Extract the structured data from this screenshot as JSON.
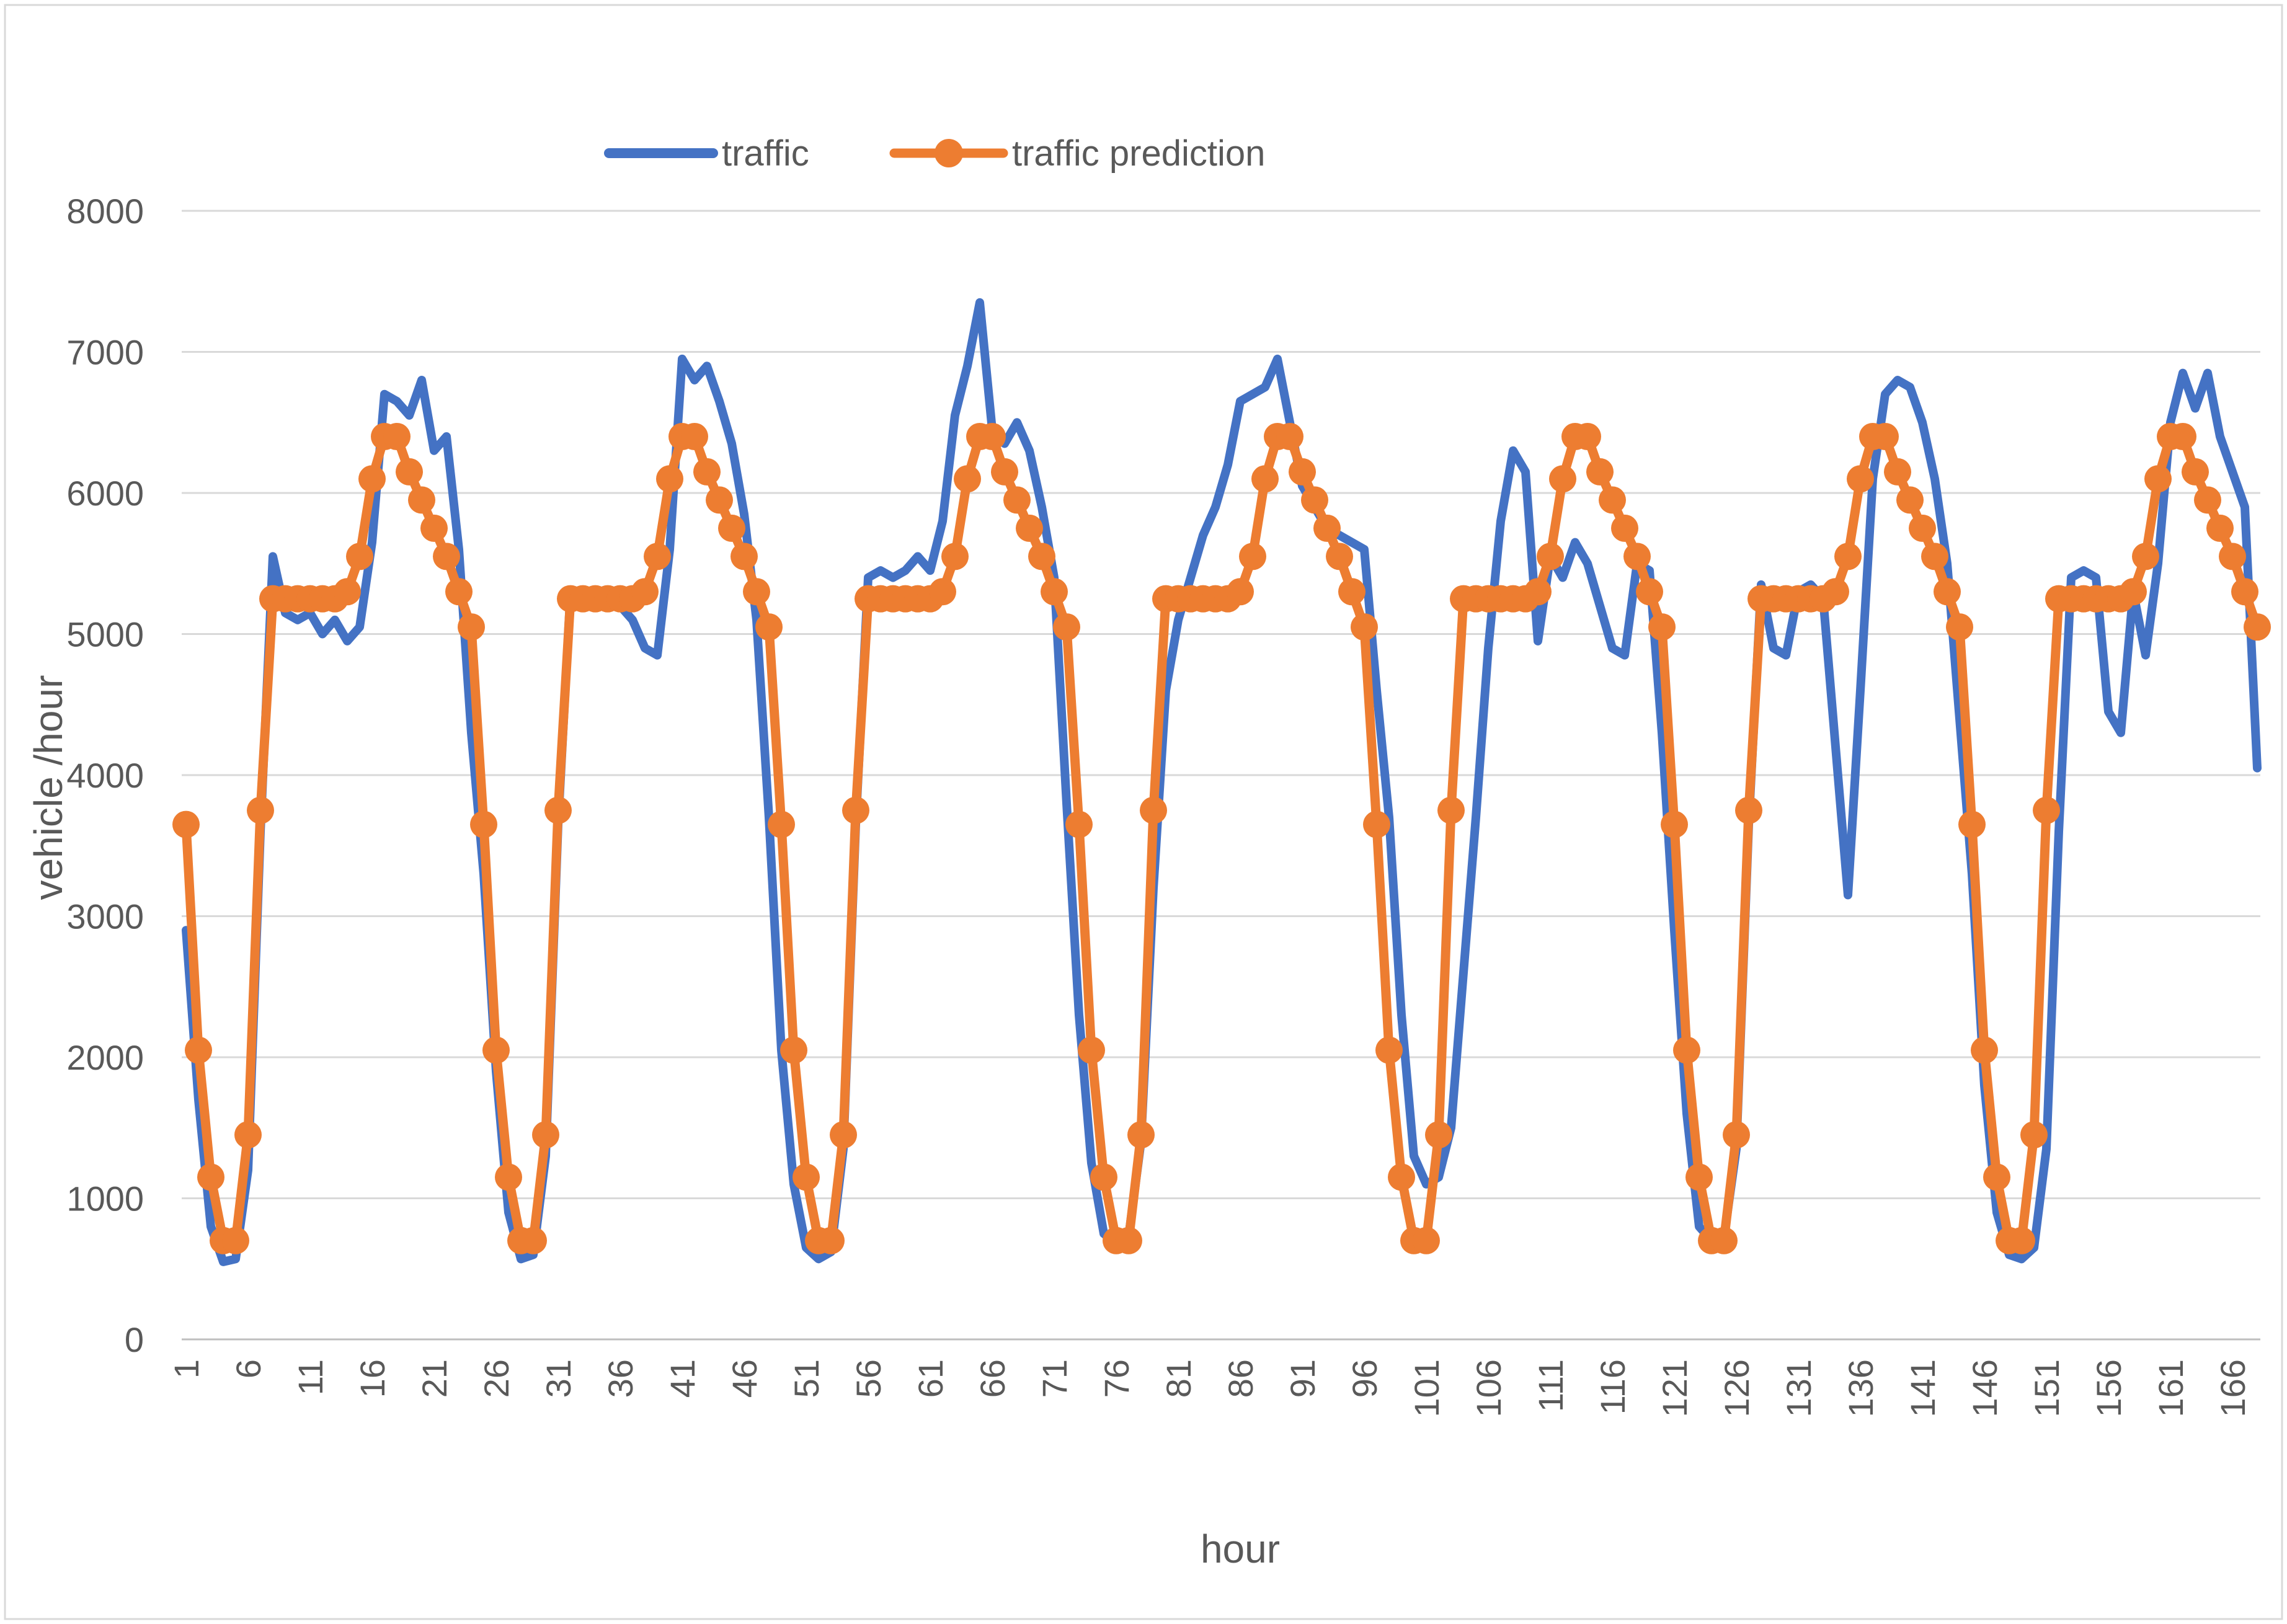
{
  "chart_data": {
    "type": "line",
    "title": "",
    "xlabel": "hour",
    "ylabel": "vehicle /hour",
    "x_range": [
      1,
      168
    ],
    "ylim": [
      0,
      8000
    ],
    "y_ticks": [
      0,
      1000,
      2000,
      3000,
      4000,
      5000,
      6000,
      7000,
      8000
    ],
    "x_ticks": [
      1,
      6,
      11,
      16,
      21,
      26,
      31,
      36,
      41,
      46,
      51,
      56,
      61,
      66,
      71,
      76,
      81,
      86,
      91,
      96,
      101,
      106,
      111,
      116,
      121,
      126,
      131,
      136,
      141,
      146,
      151,
      156,
      161,
      166
    ],
    "grid": "horizontal",
    "legend_position": "top-center",
    "series": [
      {
        "name": "traffic",
        "color": "#4472C4",
        "line_width": 14,
        "marker": "none",
        "values": [
          2900,
          1700,
          800,
          550,
          570,
          1200,
          3600,
          5550,
          5150,
          5100,
          5150,
          5000,
          5100,
          4950,
          5050,
          5650,
          6700,
          6650,
          6550,
          6800,
          6300,
          6400,
          5600,
          4300,
          3300,
          1900,
          900,
          570,
          600,
          1300,
          3650,
          5300,
          5250,
          5250,
          5200,
          5200,
          5100,
          4900,
          4850,
          5600,
          6950,
          6800,
          6900,
          6650,
          6350,
          5850,
          5100,
          3700,
          2050,
          1100,
          650,
          570,
          620,
          1350,
          3650,
          5400,
          5450,
          5400,
          5450,
          5550,
          5450,
          5800,
          6550,
          6900,
          7350,
          6450,
          6350,
          6500,
          6300,
          5900,
          5400,
          3800,
          2300,
          1250,
          750,
          680,
          730,
          1400,
          3200,
          4600,
          5100,
          5400,
          5700,
          5900,
          6200,
          6650,
          6700,
          6750,
          6950,
          6500,
          6050,
          5900,
          5750,
          5700,
          5650,
          5600,
          4600,
          3700,
          2300,
          1300,
          1100,
          1150,
          1500,
          2600,
          3700,
          4900,
          5800,
          6300,
          6150,
          4950,
          5550,
          5400,
          5650,
          5500,
          5200,
          4900,
          4850,
          5500,
          5450,
          4300,
          2900,
          1600,
          800,
          700,
          720,
          1350,
          3650,
          5350,
          4900,
          4850,
          5300,
          5350,
          5250,
          4200,
          3150,
          4600,
          6100,
          6700,
          6800,
          6750,
          6500,
          6100,
          5500,
          4400,
          3300,
          1800,
          900,
          600,
          570,
          650,
          1350,
          3600,
          5400,
          5450,
          5400,
          4450,
          4300,
          5300,
          4850,
          5500,
          6500,
          6850,
          6600,
          6850,
          6400,
          6150,
          5900,
          4050
        ]
      },
      {
        "name": "traffic prediction",
        "color": "#ED7D31",
        "line_width": 15,
        "marker": "circle",
        "marker_size": 22,
        "values": [
          3650,
          2050,
          1150,
          700,
          700,
          1450,
          3750,
          5250,
          5250,
          5250,
          5250,
          5250,
          5250,
          5300,
          5550,
          6100,
          6400,
          6400,
          6150,
          5950,
          5750,
          5550,
          5300,
          5050,
          3650,
          2050,
          1150,
          700,
          700,
          1450,
          3750,
          5250,
          5250,
          5250,
          5250,
          5250,
          5250,
          5300,
          5550,
          6100,
          6400,
          6400,
          6150,
          5950,
          5750,
          5550,
          5300,
          5050,
          3650,
          2050,
          1150,
          700,
          700,
          1450,
          3750,
          5250,
          5250,
          5250,
          5250,
          5250,
          5250,
          5300,
          5550,
          6100,
          6400,
          6400,
          6150,
          5950,
          5750,
          5550,
          5300,
          5050,
          3650,
          2050,
          1150,
          700,
          700,
          1450,
          3750,
          5250,
          5250,
          5250,
          5250,
          5250,
          5250,
          5300,
          5550,
          6100,
          6400,
          6400,
          6150,
          5950,
          5750,
          5550,
          5300,
          5050,
          3650,
          2050,
          1150,
          700,
          700,
          1450,
          3750,
          5250,
          5250,
          5250,
          5250,
          5250,
          5250,
          5300,
          5550,
          6100,
          6400,
          6400,
          6150,
          5950,
          5750,
          5550,
          5300,
          5050,
          3650,
          2050,
          1150,
          700,
          700,
          1450,
          3750,
          5250,
          5250,
          5250,
          5250,
          5250,
          5250,
          5300,
          5550,
          6100,
          6400,
          6400,
          6150,
          5950,
          5750,
          5550,
          5300,
          5050,
          3650,
          2050,
          1150,
          700,
          700,
          1450,
          3750,
          5250,
          5250,
          5250,
          5250,
          5250,
          5250,
          5300,
          5550,
          6100,
          6400,
          6400,
          6150,
          5950,
          5750,
          5550,
          5300,
          5050
        ]
      }
    ]
  },
  "colors": {
    "traffic_blue": "#4472C4",
    "prediction_orange": "#ED7D31",
    "gridline": "#D9D9D9",
    "axis_line": "#BFBFBF",
    "text": "#595959",
    "border": "#D9D9D9",
    "background": "#FFFFFF"
  }
}
